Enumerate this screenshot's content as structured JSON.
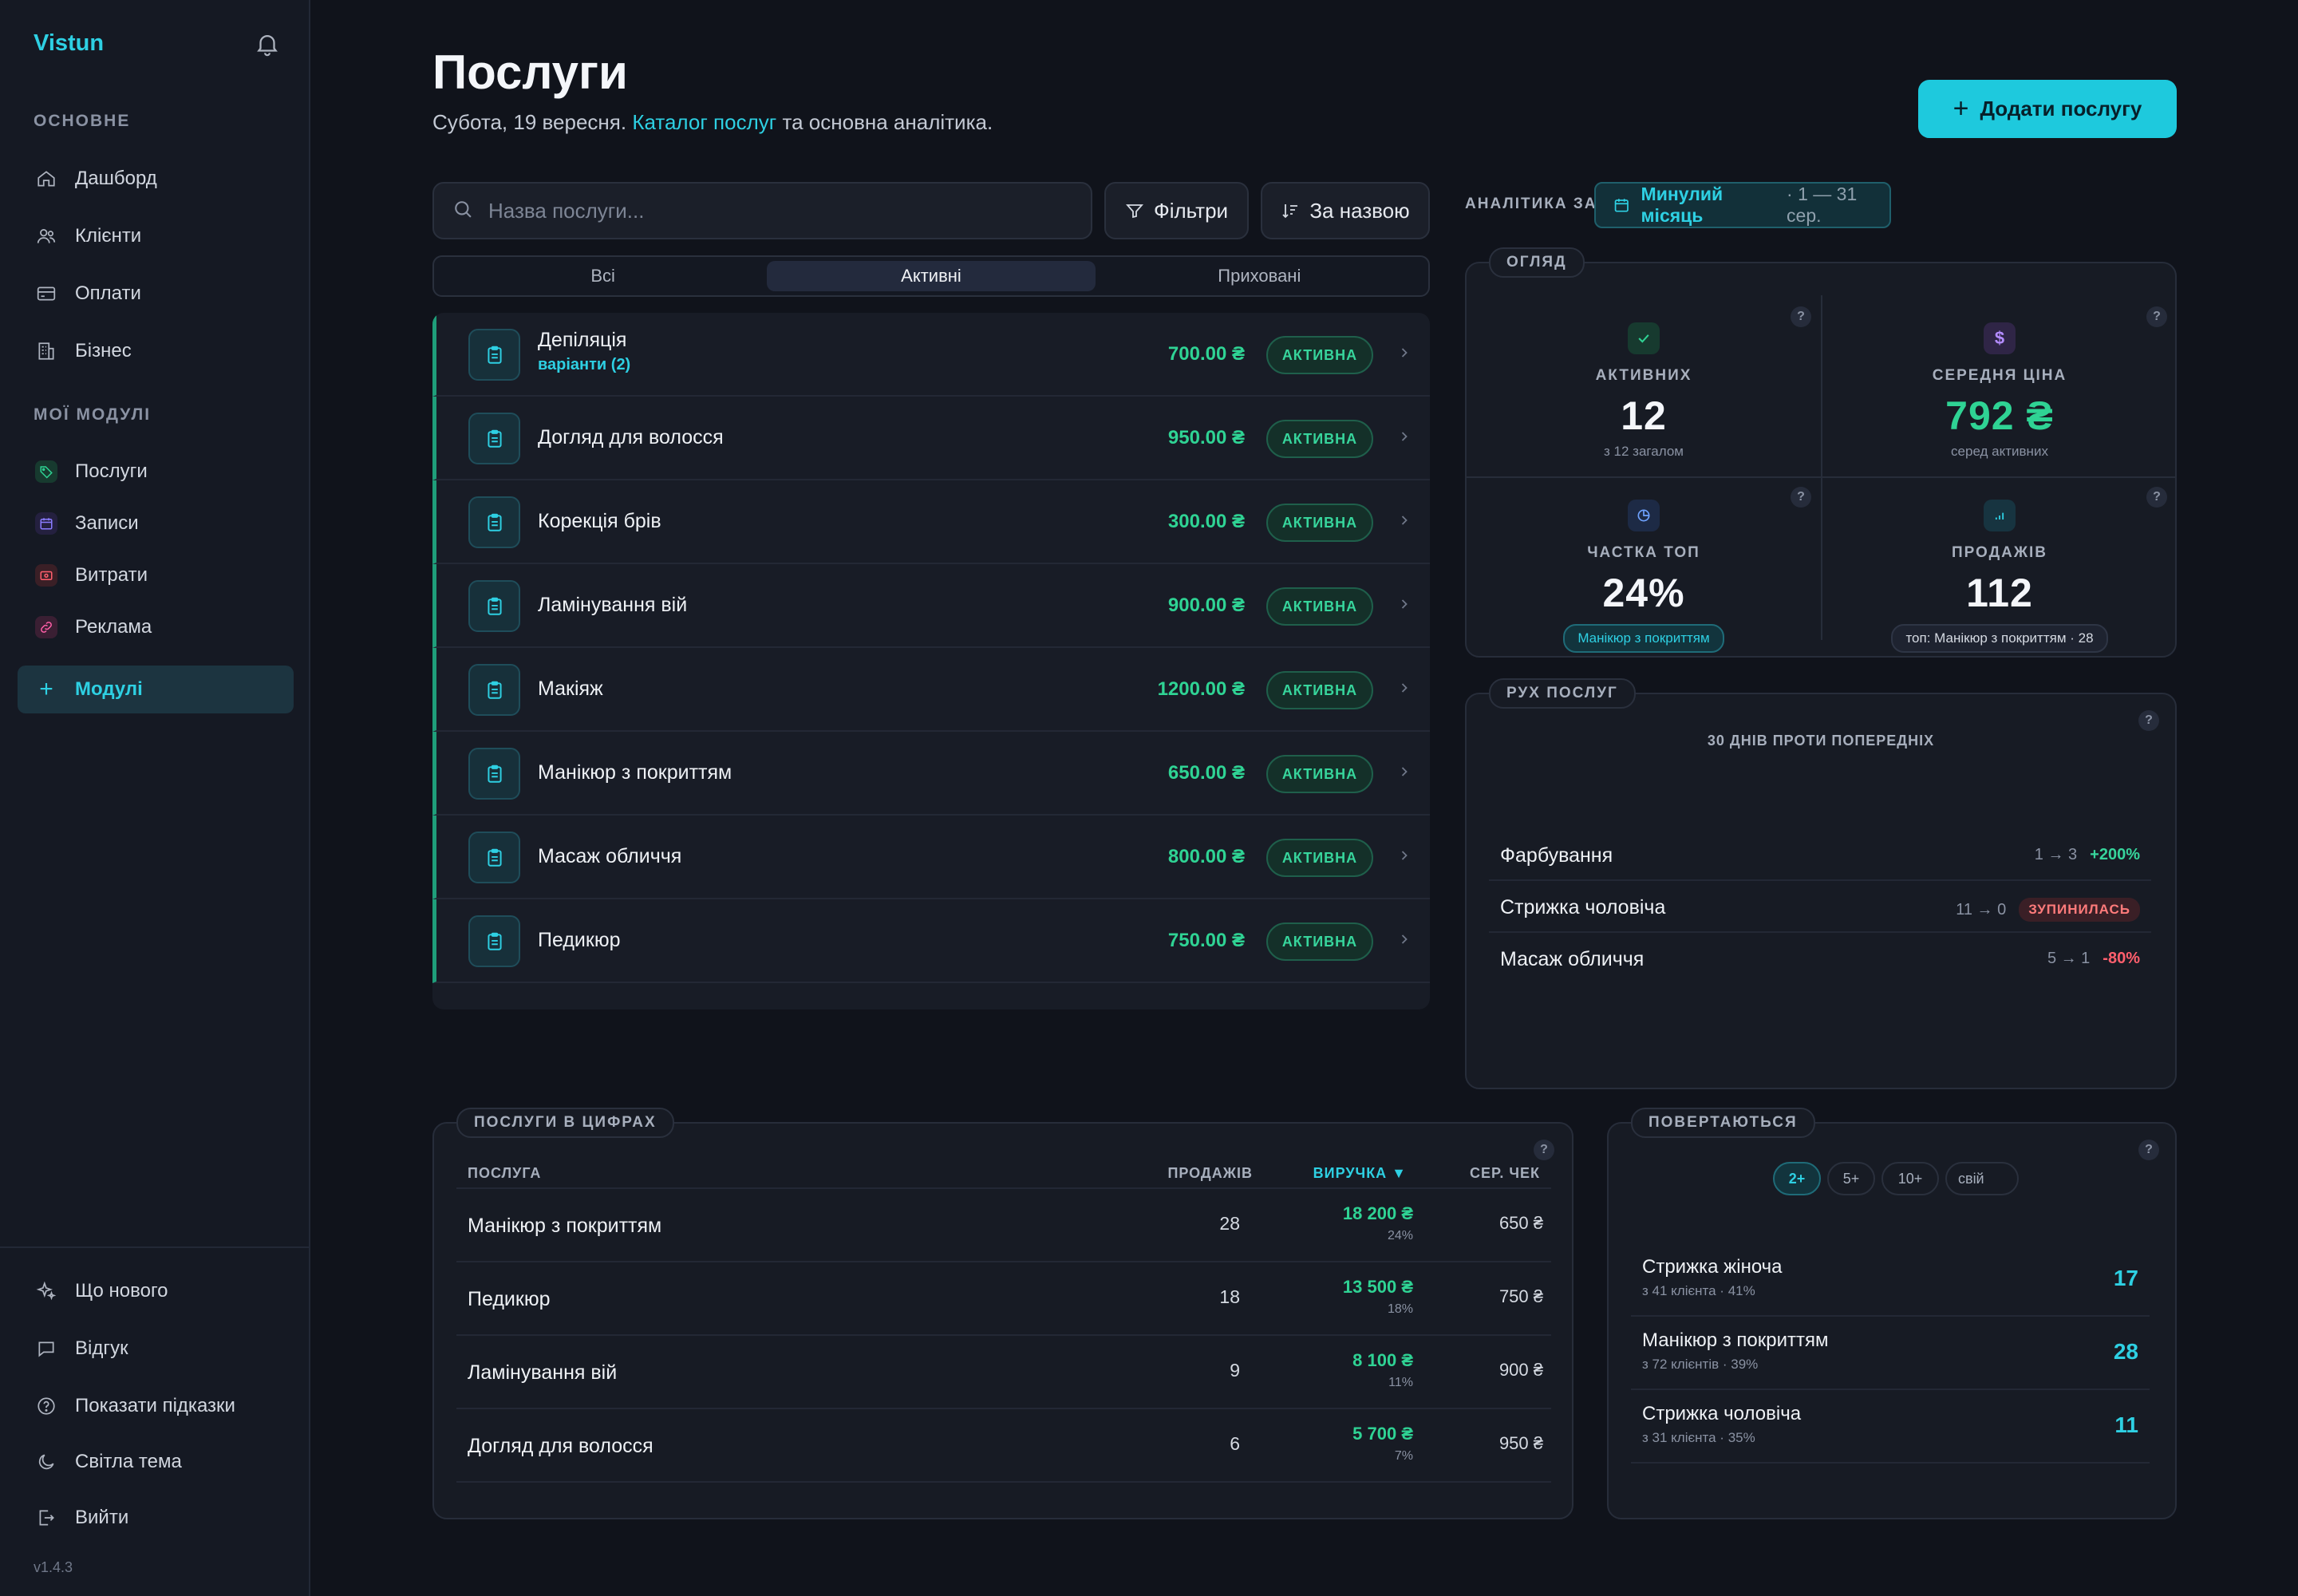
{
  "sidebar": {
    "brand": "Vistun",
    "section_main": "ОСНОВНЕ",
    "main_items": [
      {
        "label": "Дашборд",
        "icon": "home-icon"
      },
      {
        "label": "Клієнти",
        "icon": "users-icon"
      },
      {
        "label": "Оплати",
        "icon": "card-icon"
      },
      {
        "label": "Бізнес",
        "icon": "building-icon"
      }
    ],
    "section_modules": "МОЇ МОДУЛІ",
    "module_items": [
      {
        "label": "Послуги",
        "icon": "tag-icon",
        "color": "#2fd394"
      },
      {
        "label": "Записи",
        "icon": "calendar-icon",
        "color": "#8a7cff"
      },
      {
        "label": "Витрати",
        "icon": "wallet-icon",
        "color": "#ff5f6d"
      },
      {
        "label": "Реклама",
        "icon": "link-icon",
        "color": "#ff5fa8"
      }
    ],
    "modules_button": "Модулі",
    "bottom_items": [
      {
        "label": "Що нового",
        "icon": "sparkle-icon"
      },
      {
        "label": "Відгук",
        "icon": "chat-icon"
      },
      {
        "label": "Показати підказки",
        "icon": "help-circle-icon"
      },
      {
        "label": "Світла тема",
        "icon": "moon-icon"
      },
      {
        "label": "Вийти",
        "icon": "logout-icon"
      }
    ],
    "version": "v1.4.3"
  },
  "header": {
    "title": "Послуги",
    "subtitle_date": "Субота, 19 вересня.",
    "subtitle_link": "Каталог послуг",
    "subtitle_rest": "та основна аналітика.",
    "add_button": "Додати послугу"
  },
  "toolbar": {
    "search_placeholder": "Назва послуги...",
    "filters": "Фільтри",
    "sort": "За назвою"
  },
  "tabs": [
    {
      "label": "Всі",
      "active": false
    },
    {
      "label": "Активні",
      "active": true
    },
    {
      "label": "Приховані",
      "active": false
    }
  ],
  "services": [
    {
      "name": "Депіляція",
      "variant": "варіанти (2)",
      "price": "700.00 ₴",
      "status": "АКТИВНА"
    },
    {
      "name": "Догляд для волосся",
      "variant": "",
      "price": "950.00 ₴",
      "status": "АКТИВНА"
    },
    {
      "name": "Корекція брів",
      "variant": "",
      "price": "300.00 ₴",
      "status": "АКТИВНА"
    },
    {
      "name": "Ламінування вій",
      "variant": "",
      "price": "900.00 ₴",
      "status": "АКТИВНА"
    },
    {
      "name": "Макіяж",
      "variant": "",
      "price": "1200.00 ₴",
      "status": "АКТИВНА"
    },
    {
      "name": "Манікюр з покриттям",
      "variant": "",
      "price": "650.00 ₴",
      "status": "АКТИВНА"
    },
    {
      "name": "Масаж обличчя",
      "variant": "",
      "price": "800.00 ₴",
      "status": "АКТИВНА"
    },
    {
      "name": "Педикюр",
      "variant": "",
      "price": "750.00 ₴",
      "status": "АКТИВНА"
    }
  ],
  "analytics": {
    "label": "АНАЛІТИКА ЗА",
    "period_main": "Минулий місяць",
    "period_range": "· 1 — 31 сер."
  },
  "overview": {
    "tag": "ОГЛЯД",
    "help": "?",
    "active": {
      "label": "АКТИВНИХ",
      "value": "12",
      "sub": "з 12 загалом"
    },
    "avg_price": {
      "label": "СЕРЕДНЯ ЦІНА",
      "value": "792 ₴",
      "sub": "серед активних"
    },
    "top_share": {
      "label": "ЧАСТКА ТОП",
      "value": "24%",
      "chip": "Манікюр з покриттям"
    },
    "sales": {
      "label": "ПРОДАЖІВ",
      "value": "112",
      "chip": "топ: Манікюр з покриттям · 28"
    }
  },
  "movement": {
    "tag": "РУХ ПОСЛУГ",
    "caption": "30 ДНІВ ПРОТИ ПОПЕРЕДНІХ",
    "rows": [
      {
        "name": "Фарбування",
        "from": "1 → 3",
        "change": "+200%",
        "type": "up"
      },
      {
        "name": "Стрижка чоловіча",
        "from": "11 → 0",
        "change": "ЗУПИНИЛАСЬ",
        "type": "stop"
      },
      {
        "name": "Масаж обличчя",
        "from": "5 → 1",
        "change": "-80%",
        "type": "down"
      }
    ]
  },
  "numbers": {
    "tag": "ПОСЛУГИ В ЦИФРАХ",
    "columns": {
      "service": "ПОСЛУГА",
      "sales": "ПРОДАЖІВ",
      "revenue": "ВИРУЧКА ▼",
      "avg": "СЕР. ЧЕК"
    },
    "rows": [
      {
        "name": "Манікюр з покриттям",
        "sales": "28",
        "revenue": "18 200 ₴",
        "pct": "24%",
        "avg": "650 ₴"
      },
      {
        "name": "Педикюр",
        "sales": "18",
        "revenue": "13 500 ₴",
        "pct": "18%",
        "avg": "750 ₴"
      },
      {
        "name": "Ламінування вій",
        "sales": "9",
        "revenue": "8 100 ₴",
        "pct": "11%",
        "avg": "900 ₴"
      },
      {
        "name": "Догляд для волосся",
        "sales": "6",
        "revenue": "5 700 ₴",
        "pct": "7%",
        "avg": "950 ₴"
      }
    ]
  },
  "returning": {
    "tag": "ПОВЕРТАЮТЬСЯ",
    "filters": [
      "2+",
      "5+",
      "10+",
      "свій"
    ],
    "rows": [
      {
        "name": "Стрижка жіноча",
        "sub": "з 41 клієнта · 41%",
        "value": "17"
      },
      {
        "name": "Манікюр з покриттям",
        "sub": "з 72 клієнтів · 39%",
        "value": "28"
      },
      {
        "name": "Стрижка чоловіча",
        "sub": "з 31 клієнта · 35%",
        "value": "11"
      }
    ]
  },
  "colors": {
    "accent": "#2ed0e3",
    "positive": "#2fd394",
    "negative": "#ff5f6d",
    "background": "#10131b"
  }
}
